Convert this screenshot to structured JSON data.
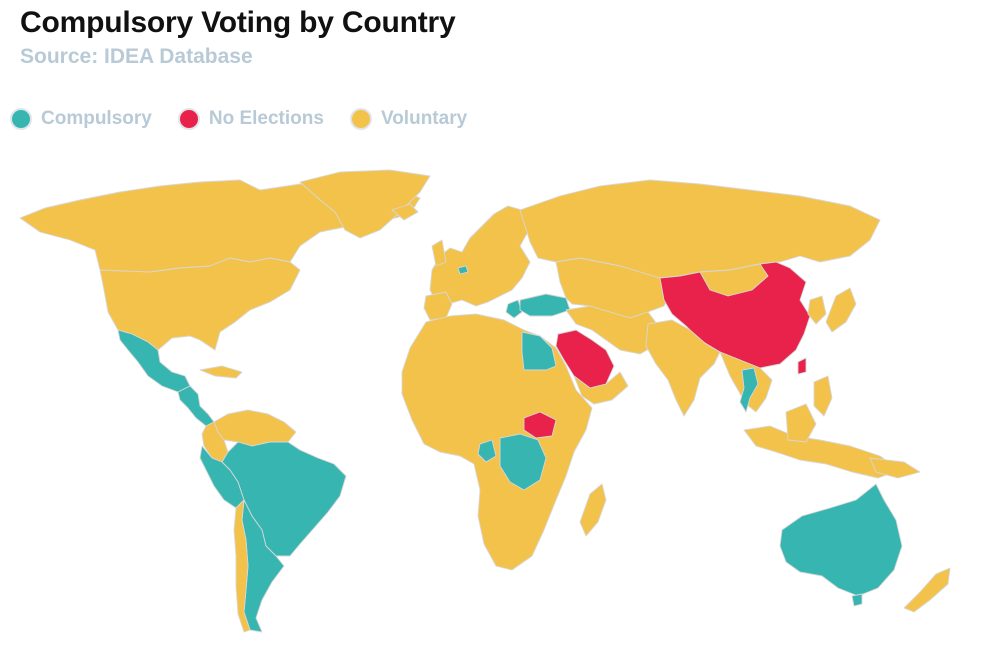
{
  "header": {
    "title": "Compulsory Voting by Country",
    "subtitle": "Source: IDEA Database"
  },
  "legend": [
    {
      "label": "Compulsory",
      "color": "#37b5b0"
    },
    {
      "label": "No Elections",
      "color": "#e8224a"
    },
    {
      "label": "Voluntary",
      "color": "#f3c24a"
    }
  ],
  "map": {
    "regions": [
      {
        "name": "Canada",
        "category": "Voluntary"
      },
      {
        "name": "United States",
        "category": "Voluntary"
      },
      {
        "name": "Greenland",
        "category": "Voluntary"
      },
      {
        "name": "Mexico",
        "category": "Compulsory"
      },
      {
        "name": "Central America",
        "category": "Compulsory"
      },
      {
        "name": "Brazil",
        "category": "Compulsory"
      },
      {
        "name": "Argentina",
        "category": "Compulsory"
      },
      {
        "name": "Peru",
        "category": "Compulsory"
      },
      {
        "name": "Chile",
        "category": "Voluntary"
      },
      {
        "name": "Colombia",
        "category": "Voluntary"
      },
      {
        "name": "Venezuela",
        "category": "Voluntary"
      },
      {
        "name": "Europe",
        "category": "Voluntary"
      },
      {
        "name": "Belgium",
        "category": "Compulsory"
      },
      {
        "name": "Greece",
        "category": "Compulsory"
      },
      {
        "name": "Turkey",
        "category": "Compulsory"
      },
      {
        "name": "Russia",
        "category": "Voluntary"
      },
      {
        "name": "China",
        "category": "No Elections"
      },
      {
        "name": "Saudi Arabia",
        "category": "No Elections"
      },
      {
        "name": "South Sudan",
        "category": "No Elections"
      },
      {
        "name": "Egypt",
        "category": "Compulsory"
      },
      {
        "name": "DR Congo",
        "category": "Compulsory"
      },
      {
        "name": "Gabon",
        "category": "Compulsory"
      },
      {
        "name": "Thailand",
        "category": "Compulsory"
      },
      {
        "name": "India",
        "category": "Voluntary"
      },
      {
        "name": "Australia",
        "category": "Compulsory"
      },
      {
        "name": "Indonesia",
        "category": "Voluntary"
      },
      {
        "name": "Japan",
        "category": "Voluntary"
      },
      {
        "name": "New Zealand",
        "category": "Voluntary"
      },
      {
        "name": "Madagascar",
        "category": "Voluntary"
      },
      {
        "name": "Africa",
        "category": "Voluntary"
      }
    ]
  }
}
